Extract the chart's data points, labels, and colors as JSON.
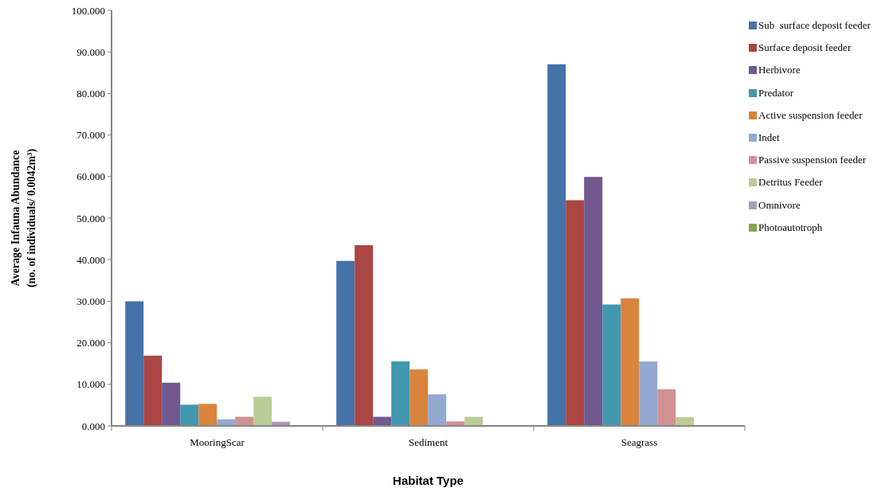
{
  "chart_data": {
    "type": "bar",
    "xlabel": "Habitat Type",
    "ylabel": "Average Infauna Abundance\n(no. of individuals/ 0.0042m³)",
    "categories": [
      "MooringScar",
      "Sediment",
      "Seagrass"
    ],
    "series": [
      {
        "name": "Sub  surface deposit feeder",
        "color": "#4572a7",
        "values": [
          30.0,
          39.7,
          87.0
        ]
      },
      {
        "name": "Surface deposit feeder",
        "color": "#aa4643",
        "values": [
          16.9,
          43.5,
          54.3
        ]
      },
      {
        "name": "Herbivore",
        "color": "#71588f",
        "values": [
          10.4,
          2.2,
          59.9
        ]
      },
      {
        "name": "Predator",
        "color": "#4198af",
        "values": [
          5.1,
          15.5,
          29.2
        ]
      },
      {
        "name": "Active suspension feeder",
        "color": "#db843d",
        "values": [
          5.3,
          13.6,
          30.7
        ]
      },
      {
        "name": "Indet",
        "color": "#93a9cf",
        "values": [
          1.6,
          7.6,
          15.5
        ]
      },
      {
        "name": "Passive suspension feeder",
        "color": "#d19392",
        "values": [
          2.2,
          1.1,
          8.8
        ]
      },
      {
        "name": "Detritus Feeder",
        "color": "#b9cd96",
        "values": [
          7.0,
          2.2,
          2.1
        ]
      },
      {
        "name": "Omnivore",
        "color": "#a99bbd",
        "values": [
          1.0,
          0,
          0
        ]
      },
      {
        "name": "Photoautotroph",
        "color": "#89a54e",
        "values": [
          0,
          0,
          0
        ]
      }
    ],
    "ylim": [
      0,
      100
    ],
    "yticks": [
      {
        "value": 0,
        "label": "0.000"
      },
      {
        "value": 10,
        "label": "10.000"
      },
      {
        "value": 20,
        "label": "20.000"
      },
      {
        "value": 30,
        "label": "30.000"
      },
      {
        "value": 40,
        "label": "40.000"
      },
      {
        "value": 50,
        "label": "50.000"
      },
      {
        "value": 60,
        "label": "60.000"
      },
      {
        "value": 70,
        "label": "70.000"
      },
      {
        "value": 80,
        "label": "80.000"
      },
      {
        "value": 90,
        "label": "90.000"
      },
      {
        "value": 100,
        "label": "100.000"
      }
    ],
    "legend": "top right"
  }
}
